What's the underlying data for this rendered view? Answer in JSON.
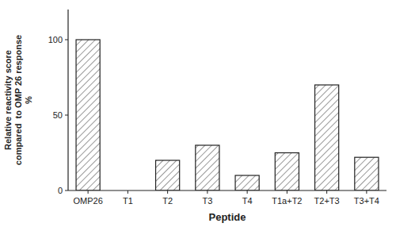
{
  "chart_data": {
    "type": "bar",
    "xlabel": "Peptide",
    "ylabel": "Relative reactivity score\ncompared  to OMP 26 response\n%",
    "categories": [
      "OMP26",
      "T1",
      "T2",
      "T3",
      "T4",
      "T1a+T2",
      "T2+T3",
      "T3+T4"
    ],
    "values": [
      100,
      0,
      20,
      30,
      10,
      25,
      70,
      22
    ],
    "color": "#ffffff",
    "ylim": [
      0,
      120
    ],
    "yticks": [
      0,
      50,
      100
    ],
    "grid": false
  }
}
